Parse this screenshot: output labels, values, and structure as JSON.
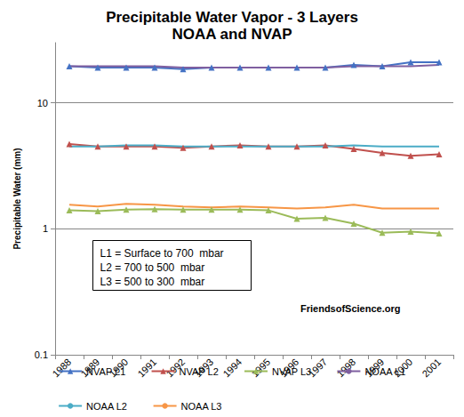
{
  "chart_data": {
    "type": "line",
    "title": "Precipitable Water Vapor - 3 Layers",
    "subtitle": "NOAA and NVAP",
    "y_label": "Precipitable Water (mm)",
    "categories": [
      "1988",
      "1989",
      "1990",
      "1991",
      "1992",
      "1993",
      "1994",
      "1995",
      "1996",
      "1997",
      "1998",
      "1999",
      "2000",
      "2001"
    ],
    "series": [
      {
        "name": "NVAP L1",
        "color": "#4472c4",
        "marker": "triangle",
        "values": [
          19.5,
          19,
          19,
          19,
          18.5,
          19,
          19,
          19,
          19,
          19,
          20,
          19.5,
          21,
          21
        ]
      },
      {
        "name": "NVAP L2",
        "color": "#c0504d",
        "marker": "triangle",
        "values": [
          4.7,
          4.5,
          4.5,
          4.5,
          4.4,
          4.5,
          4.6,
          4.5,
          4.5,
          4.6,
          4.3,
          4.0,
          3.8,
          3.9
        ]
      },
      {
        "name": "NVAP L3",
        "color": "#9bbb59",
        "marker": "triangle",
        "values": [
          1.4,
          1.38,
          1.42,
          1.43,
          1.42,
          1.42,
          1.42,
          1.4,
          1.2,
          1.22,
          1.1,
          0.93,
          0.95,
          0.92
        ]
      },
      {
        "name": "NOAA L1",
        "color": "#7f5fa0",
        "marker": "none",
        "values": [
          19.5,
          19.5,
          19.5,
          19.5,
          19,
          19,
          19,
          19,
          19,
          19,
          19.5,
          19.5,
          19.5,
          20
        ]
      },
      {
        "name": "NOAA L2",
        "color": "#4bacc6",
        "marker": "none",
        "values": [
          4.5,
          4.5,
          4.6,
          4.6,
          4.5,
          4.5,
          4.5,
          4.5,
          4.5,
          4.5,
          4.6,
          4.5,
          4.5,
          4.5
        ]
      },
      {
        "name": "NOAA L3",
        "color": "#f79646",
        "marker": "none",
        "values": [
          1.55,
          1.5,
          1.58,
          1.55,
          1.5,
          1.48,
          1.5,
          1.48,
          1.45,
          1.48,
          1.55,
          1.45,
          1.45,
          1.45
        ]
      }
    ],
    "log": "y",
    "ylim": [
      0.1,
      30
    ],
    "yticks": [
      0.1,
      1,
      10
    ],
    "grid": true,
    "legend": "bottom",
    "annotations": [
      [
        "L1 = Surface to 700  mbar",
        "L2 = 700 to 500  mbar",
        "L3 = 500 to 300  mbar"
      ],
      "FriendsofScience.org"
    ]
  }
}
